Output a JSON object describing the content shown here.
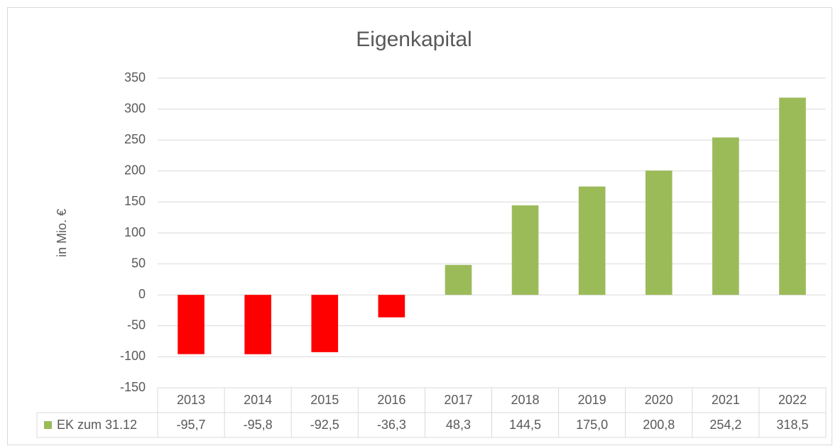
{
  "chart_data": {
    "type": "bar",
    "title": "Eigenkapital",
    "y_label": "in Mio. €",
    "categories": [
      "2013",
      "2014",
      "2015",
      "2016",
      "2017",
      "2018",
      "2019",
      "2020",
      "2021",
      "2022"
    ],
    "series": [
      {
        "name": "EK zum 31.12",
        "color": "#9bbb59",
        "colors": [
          "#ff0000",
          "#ff0000",
          "#ff0000",
          "#ff0000",
          "#9bbb59",
          "#9bbb59",
          "#9bbb59",
          "#9bbb59",
          "#9bbb59",
          "#9bbb59"
        ],
        "values": [
          -95.7,
          -95.8,
          -92.5,
          -36.3,
          48.3,
          144.5,
          175.0,
          200.8,
          254.2,
          318.5
        ],
        "value_labels": [
          "-95,7",
          "-95,8",
          "-92,5",
          "-36,3",
          "48,3",
          "144,5",
          "175,0",
          "200,8",
          "254,2",
          "318,5"
        ]
      }
    ],
    "ylim": [
      -150,
      350
    ],
    "yticks": [
      -150,
      -100,
      -50,
      0,
      50,
      100,
      150,
      200,
      250,
      300,
      350
    ],
    "grid": true
  }
}
